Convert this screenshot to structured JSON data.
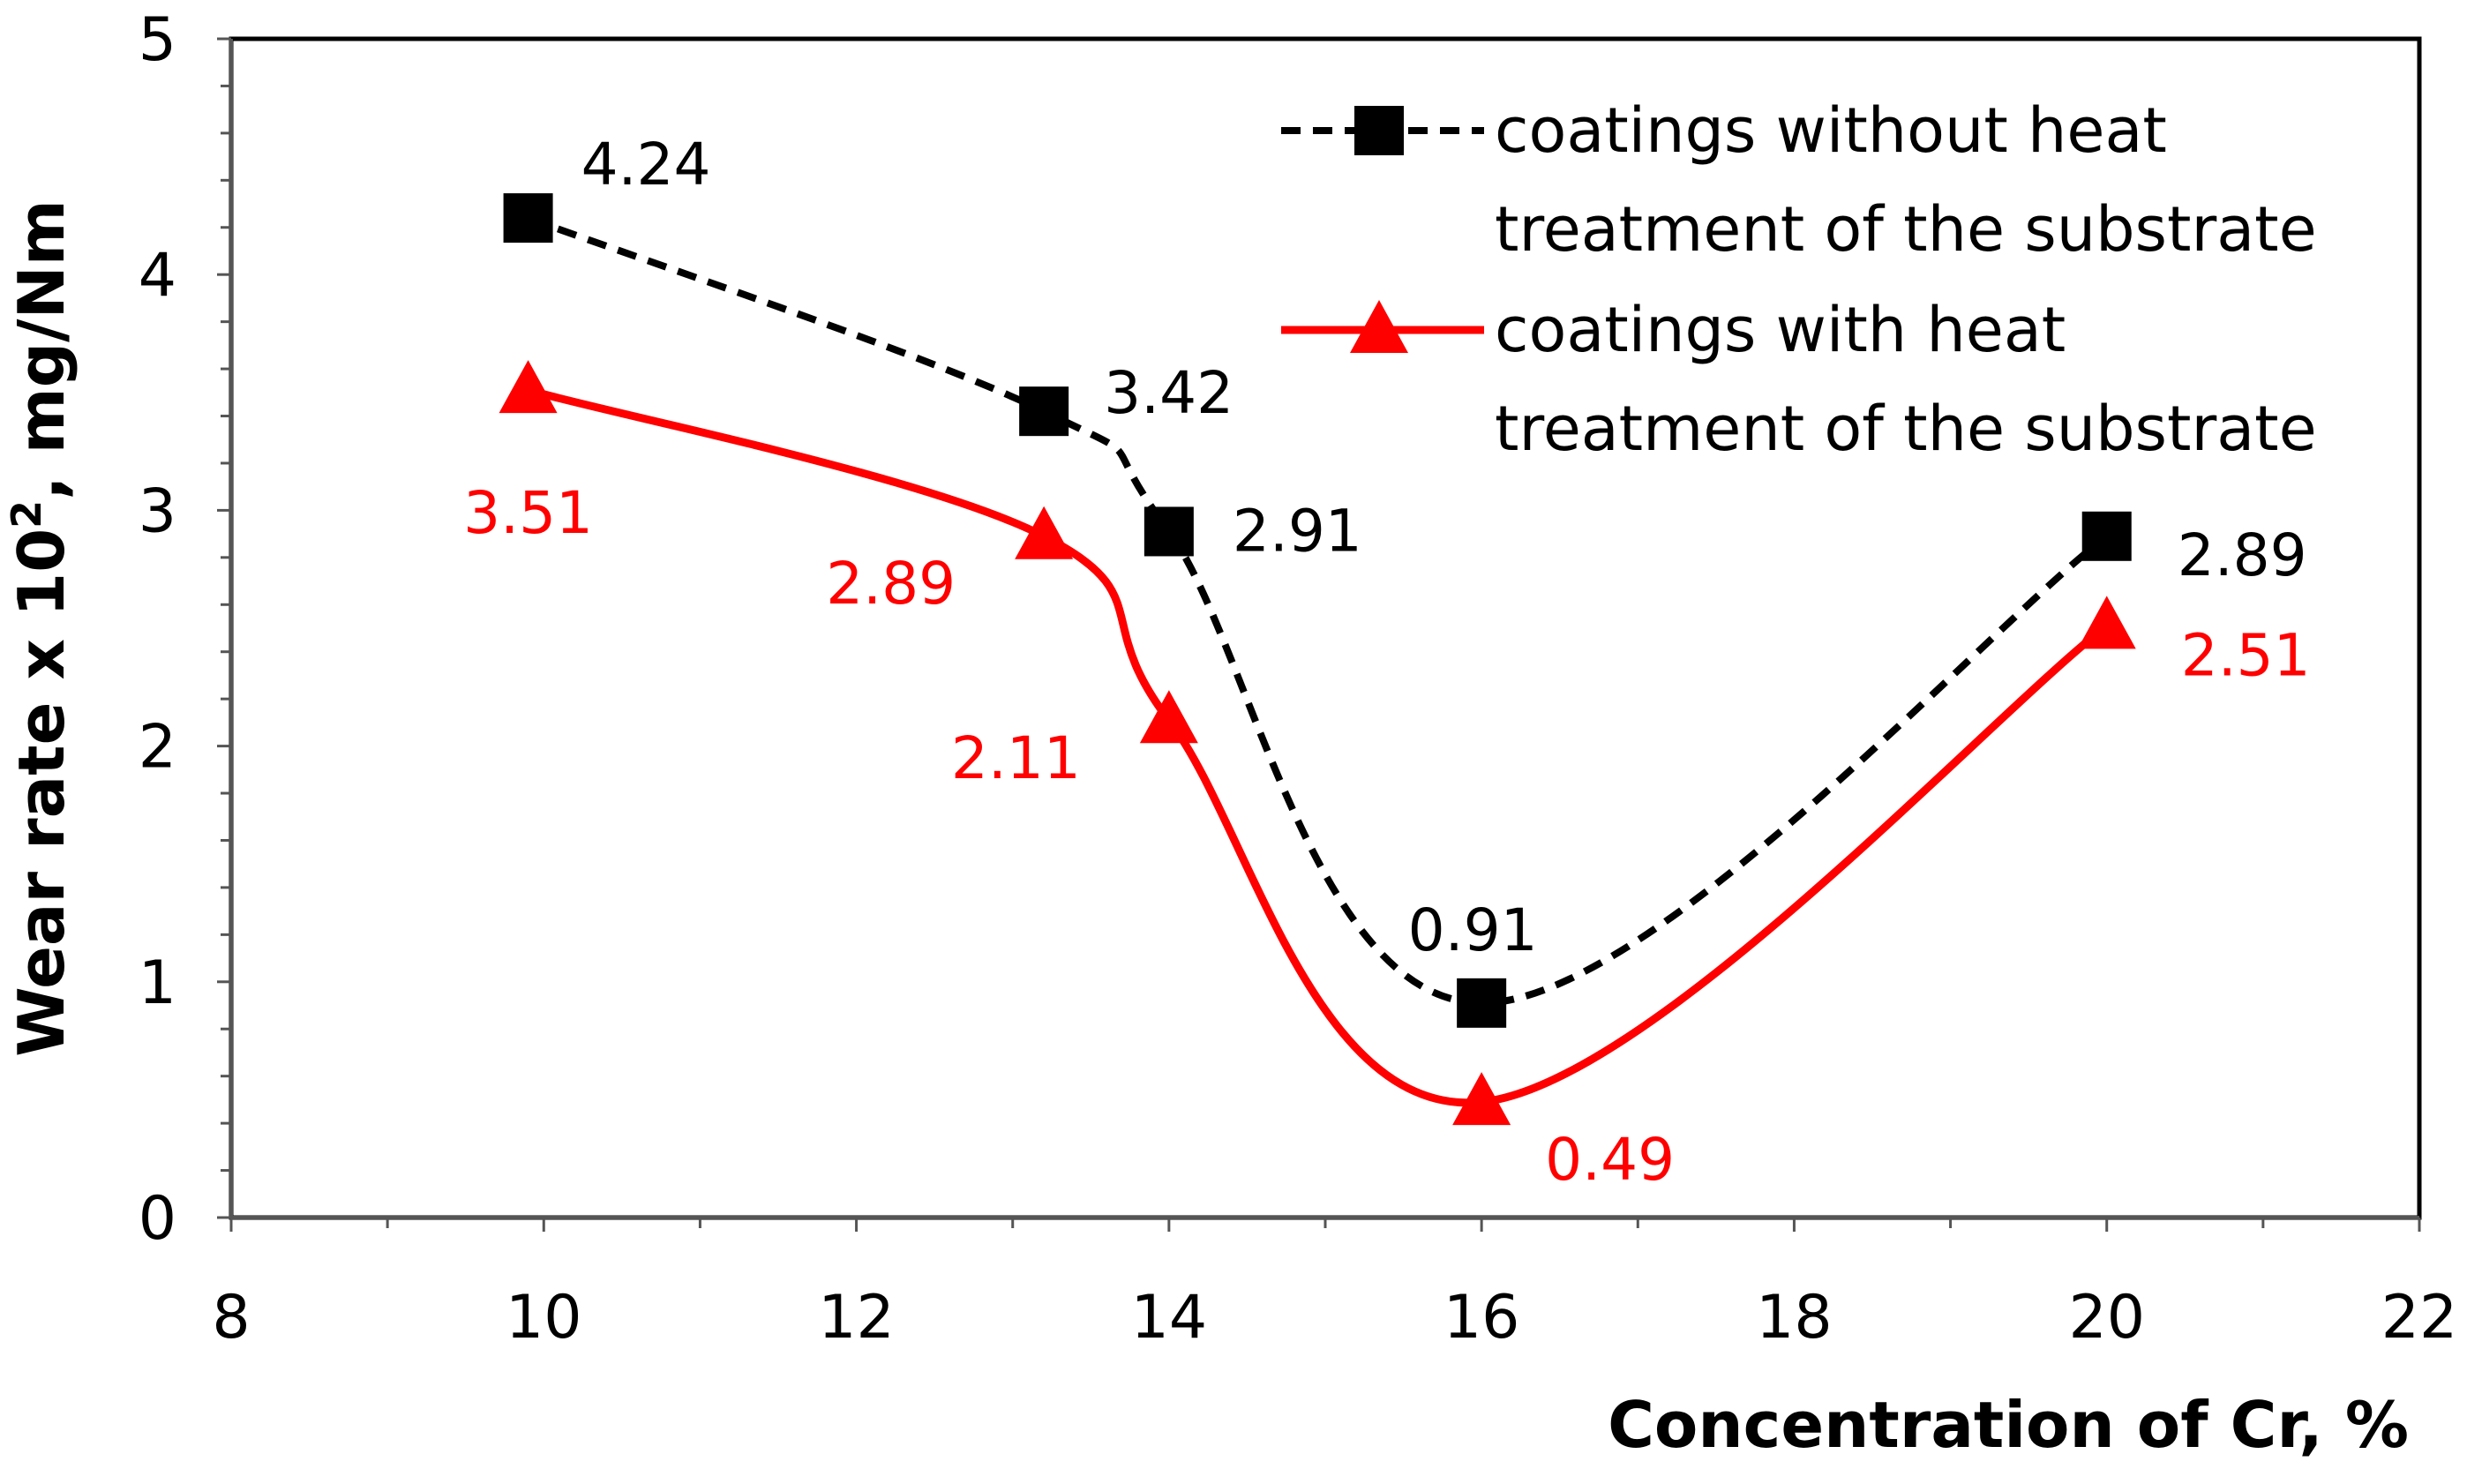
{
  "chart_data": {
    "type": "line",
    "title": "",
    "xlabel": "Concentration of Cr, %",
    "ylabel_main": "Wear rate x 10",
    "ylabel_sup": "2",
    "ylabel_tail": ", mg/Nm",
    "xlim": [
      8,
      22
    ],
    "ylim": [
      0,
      5
    ],
    "x_ticks": [
      8,
      10,
      12,
      14,
      16,
      18,
      20,
      22
    ],
    "y_ticks": [
      0,
      1,
      2,
      3,
      4,
      5
    ],
    "grid": false,
    "legend_position": "top-right",
    "series": [
      {
        "name": "coatings without heat treatment of the substrate",
        "legend_lines": [
          "coatings without heat",
          "treatment of the substrate"
        ],
        "color": "#000000",
        "line_style": "dashed",
        "marker": "square",
        "x": [
          9.9,
          13.2,
          14.0,
          16.0,
          20.0
        ],
        "y": [
          4.24,
          3.42,
          2.91,
          0.91,
          2.89
        ],
        "labels": [
          "4.24",
          "3.42",
          "2.91",
          "0.91",
          "2.89"
        ]
      },
      {
        "name": "coatings with heat treatment of the substrate",
        "legend_lines": [
          "coatings with heat",
          "treatment of the substrate"
        ],
        "color": "#ff0000",
        "line_style": "solid",
        "marker": "triangle",
        "x": [
          9.9,
          13.2,
          14.0,
          16.0,
          20.0
        ],
        "y": [
          3.51,
          2.89,
          2.11,
          0.49,
          2.51
        ],
        "labels": [
          "3.51",
          "2.89",
          "2.11",
          "0.49",
          "2.51"
        ]
      }
    ]
  }
}
